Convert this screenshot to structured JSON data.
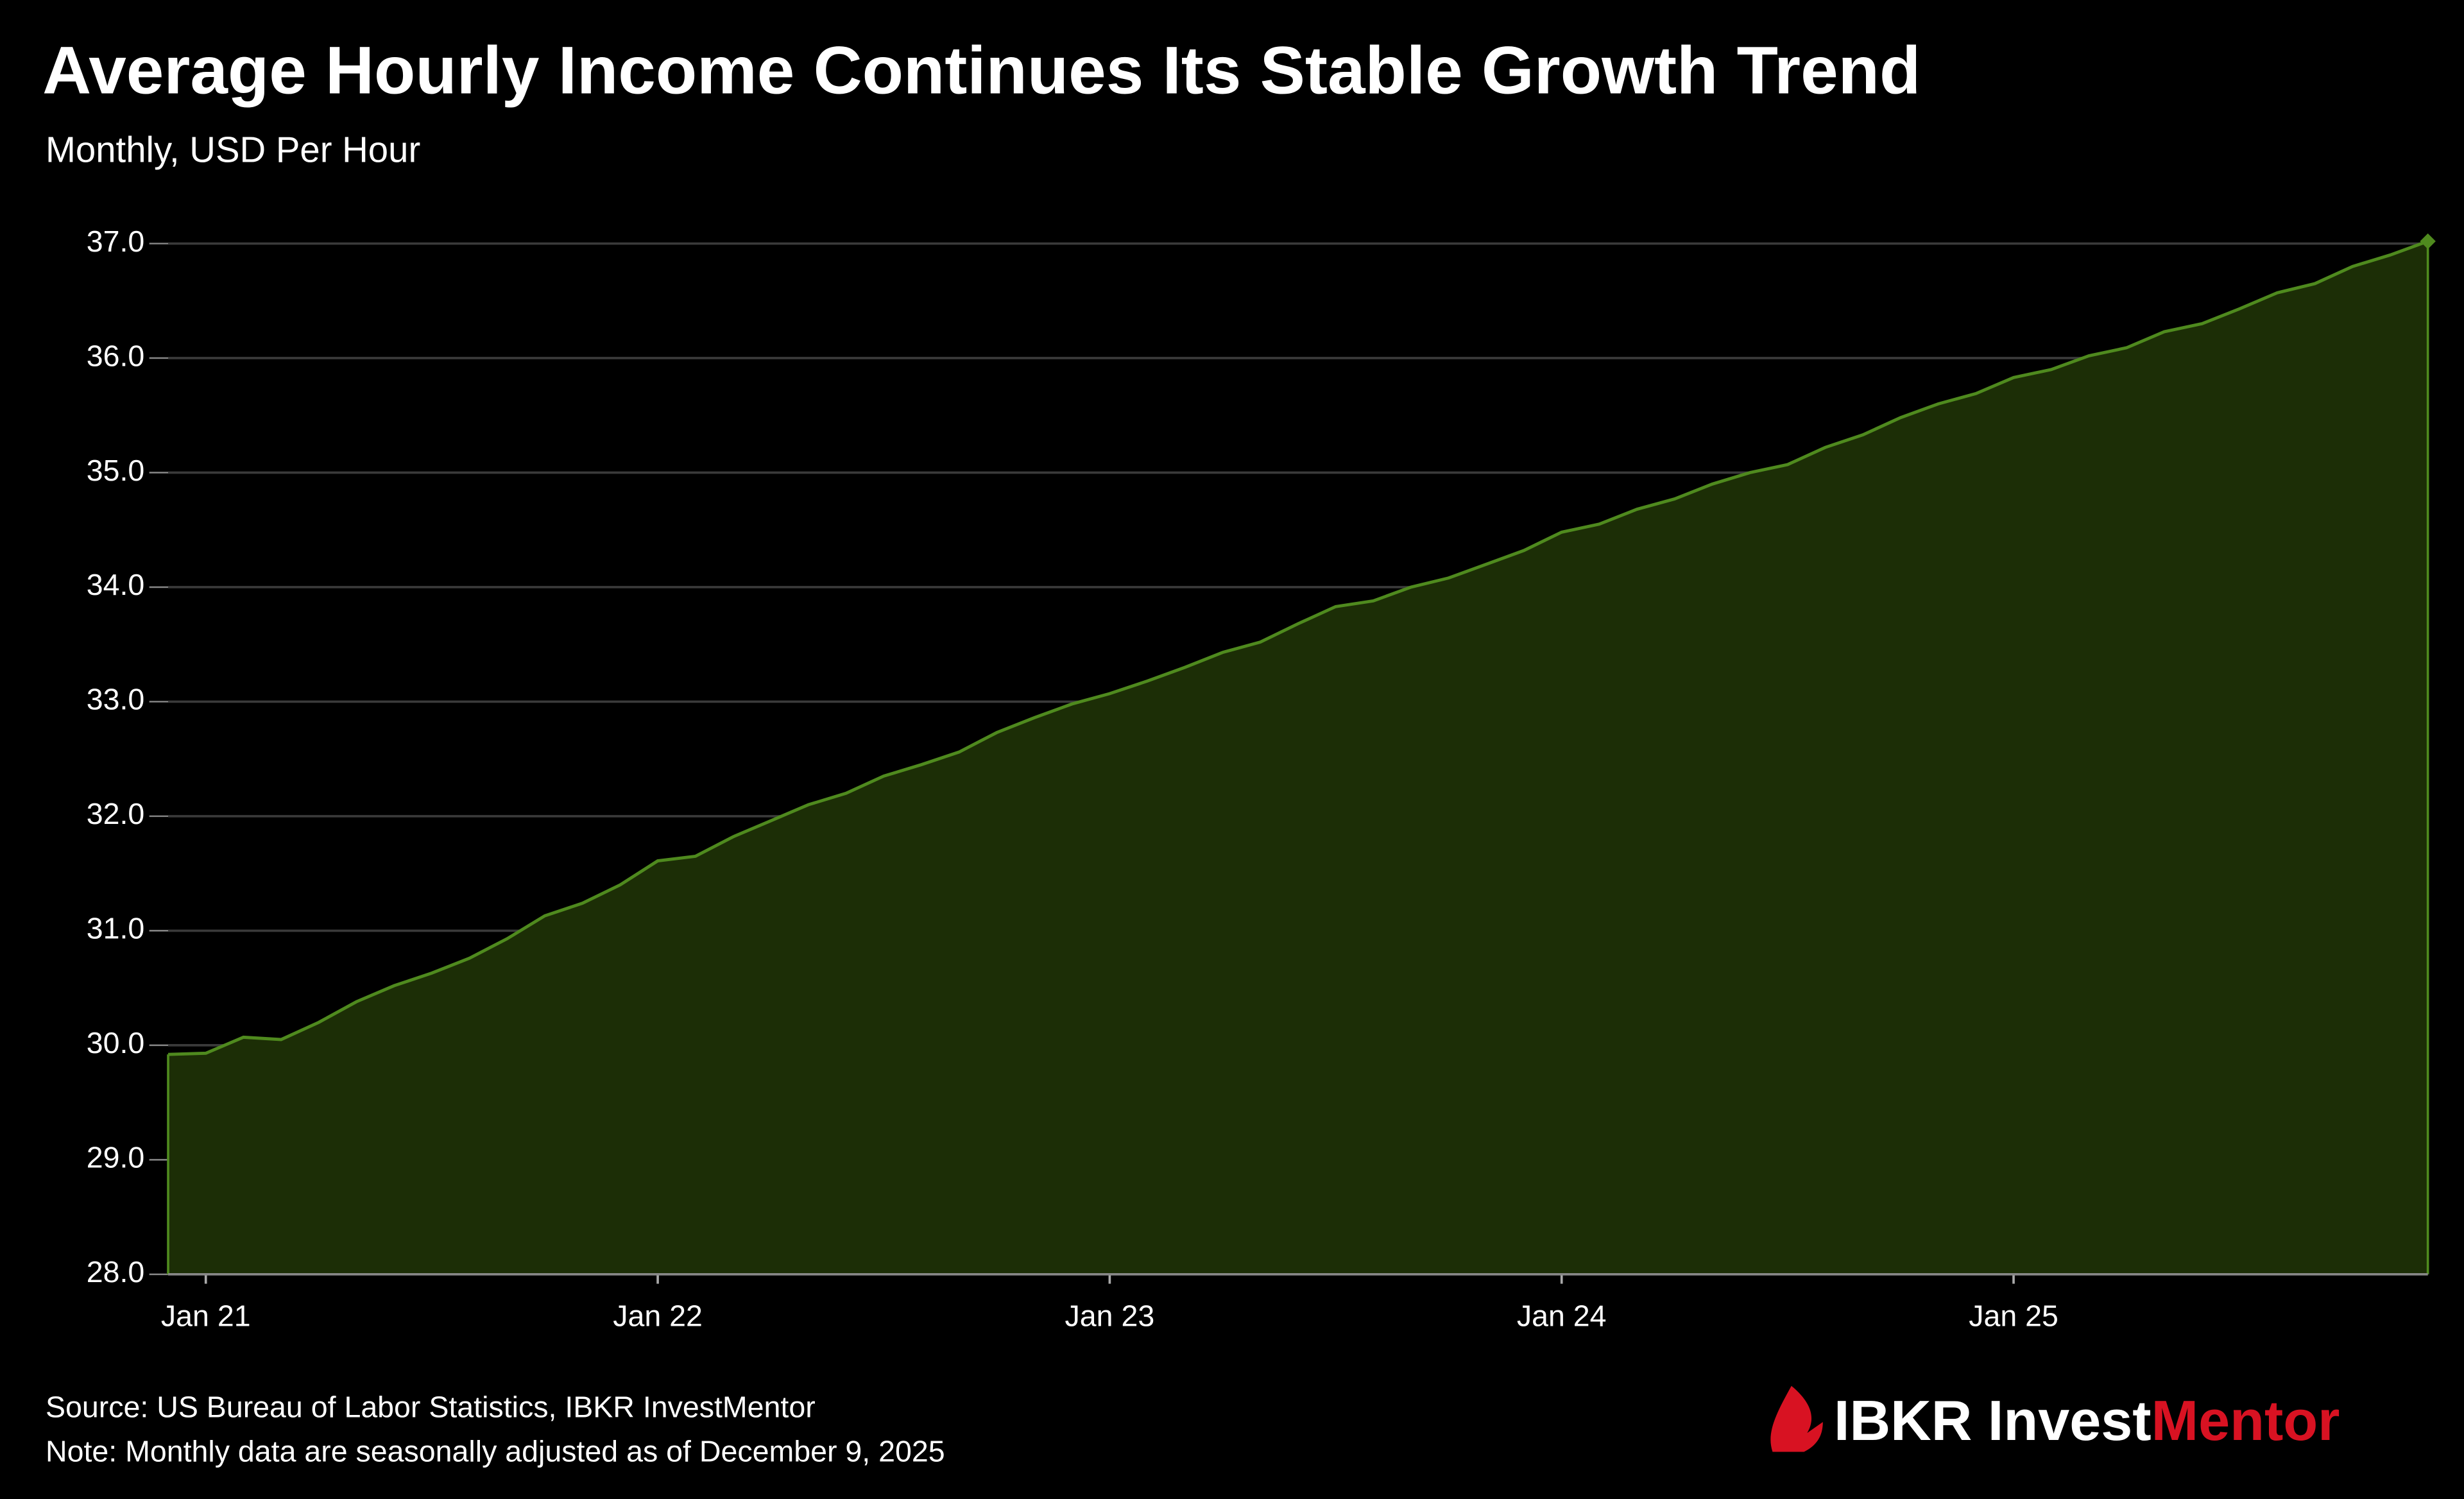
{
  "chart_data": {
    "type": "area",
    "title": "Average Hourly Income Continues Its Stable Growth Trend",
    "subtitle": "Monthly, USD Per Hour",
    "source": "Source: US Bureau of Labor Statistics, IBKR InvestMentor",
    "note": "Note: Monthly data are seasonally adjusted as of December 9, 2025",
    "logo": {
      "prefix": "IBKR Invest",
      "suffix": "Mentor"
    },
    "color": "#4f8a1e",
    "fill": "#1c2e06",
    "grid": true,
    "x": [
      null,
      "Jan 21",
      null,
      null,
      null,
      null,
      null,
      null,
      null,
      null,
      null,
      null,
      null,
      "Jan 22",
      null,
      null,
      null,
      null,
      null,
      null,
      null,
      null,
      null,
      null,
      null,
      "Jan 23",
      null,
      null,
      null,
      null,
      null,
      null,
      null,
      null,
      null,
      null,
      null,
      "Jan 24",
      null,
      null,
      null,
      null,
      null,
      null,
      null,
      null,
      null,
      null,
      null,
      "Jan 25",
      null,
      null,
      null,
      null,
      null,
      null,
      null,
      null,
      null,
      null,
      null
    ],
    "values": [
      29.92,
      29.93,
      30.07,
      30.05,
      30.2,
      30.38,
      30.52,
      30.63,
      30.76,
      30.93,
      31.13,
      31.24,
      31.4,
      31.61,
      31.65,
      31.82,
      31.96,
      32.1,
      32.2,
      32.35,
      32.45,
      32.56,
      32.73,
      32.86,
      32.98,
      33.07,
      33.18,
      33.3,
      33.43,
      33.52,
      33.68,
      33.83,
      33.88,
      34.0,
      34.08,
      34.2,
      34.32,
      34.48,
      34.55,
      34.68,
      34.77,
      34.9,
      35.0,
      35.07,
      35.22,
      35.33,
      35.48,
      35.6,
      35.69,
      35.83,
      35.9,
      36.02,
      36.09,
      36.23,
      36.3,
      36.43,
      36.57,
      36.65,
      36.8,
      36.9,
      37.02
    ],
    "ylim": [
      28,
      37
    ],
    "yticks": [
      {
        "value": 28,
        "label": "28.0"
      },
      {
        "value": 29,
        "label": "29.0"
      },
      {
        "value": 30,
        "label": "30.0"
      },
      {
        "value": 31,
        "label": "31.0"
      },
      {
        "value": 32,
        "label": "32.0"
      },
      {
        "value": 33,
        "label": "33.0"
      },
      {
        "value": 34,
        "label": "34.0"
      },
      {
        "value": 35,
        "label": "35.0"
      },
      {
        "value": 36,
        "label": "36.0"
      },
      {
        "value": 37,
        "label": "37.0"
      }
    ]
  }
}
